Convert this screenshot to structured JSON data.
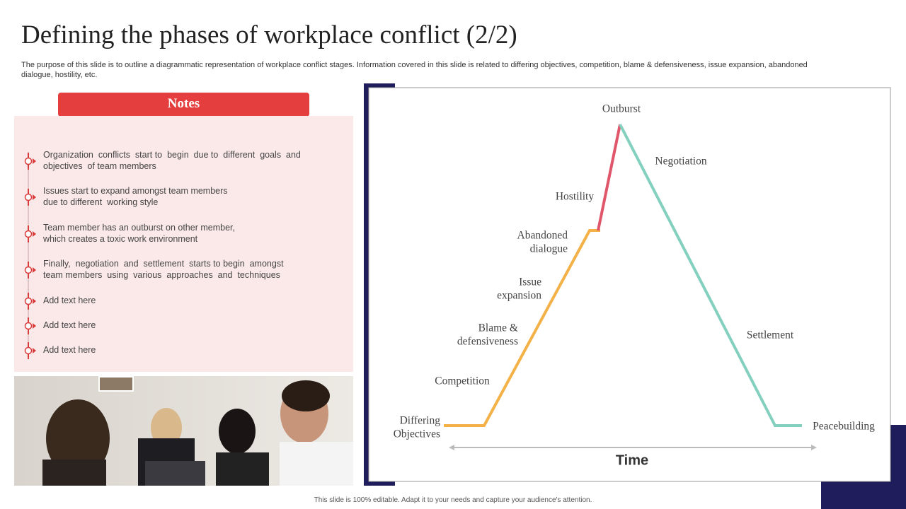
{
  "header": {
    "title": "Defining the phases of workplace conflict (2/2)",
    "description": [
      "The purpose of this slide is to outline a diagrammatic representation of workplace conflict stages. Information covered in this slide is related to differing objectives, competition, blame & defensiveness, issue expansion, abandoned",
      "dialogue, hostility, etc."
    ]
  },
  "notes": {
    "heading": "Notes",
    "items": [
      [
        "Organization  conflicts  start to  begin  due to  different  goals  and",
        "objectives  of team members"
      ],
      [
        "Issues start to expand amongst team members",
        "due to different  working style"
      ],
      [
        "Team member has an outburst on other member,",
        "which creates a toxic work environment"
      ],
      [
        "Finally,  negotiation  and  settlement  starts to begin  amongst",
        "team members  using  various  approaches  and  techniques"
      ],
      [
        "Add text here"
      ],
      [
        "Add text here"
      ],
      [
        "Add text here"
      ]
    ]
  },
  "diagram": {
    "labels": {
      "outburst": [
        "Outburst"
      ],
      "negotiation": [
        "Negotiation"
      ],
      "hostility": [
        "Hostility"
      ],
      "abandoned_dialogue": [
        "Abandoned",
        "dialogue"
      ],
      "issue_expansion": [
        "Issue",
        "expansion"
      ],
      "blame": [
        "Blame &",
        "defensiveness"
      ],
      "competition": [
        "Competition"
      ],
      "differing_objectives": [
        "Differing",
        "Objectives"
      ],
      "settlement": [
        "Settlement"
      ],
      "peacebuilding": [
        "Peacebuilding"
      ]
    },
    "axis_label": "Time"
  },
  "footer": "This slide is 100% editable. Adapt it to your needs and capture your audience's attention."
}
